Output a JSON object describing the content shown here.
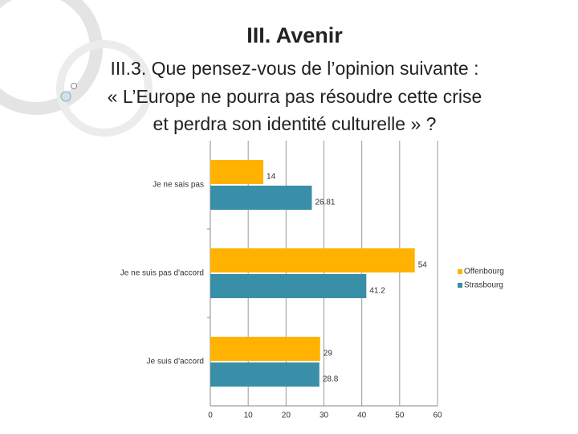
{
  "chart_data": {
    "type": "bar",
    "orientation": "horizontal",
    "title": "III. Avenir",
    "subtitle": [
      "III.3.  Que pensez-vous de l’opinion suivante :",
      "« L’Europe ne pourra pas résoudre cette crise",
      "et perdra son identité culturelle » ?"
    ],
    "categories": [
      "Je ne sais pas",
      "Je ne suis pas d'accord",
      "Je suis d'accord"
    ],
    "series": [
      {
        "name": "Offenbourg",
        "color": "#ffb300",
        "values": [
          14,
          54,
          29
        ]
      },
      {
        "name": "Strasbourg",
        "color": "#3a8fa8",
        "values": [
          26.81,
          41.2,
          28.8
        ]
      }
    ],
    "xlim": [
      0,
      60
    ],
    "xticks": [
      0,
      10,
      20,
      30,
      40,
      50,
      60
    ],
    "grid": true,
    "legend": "right"
  }
}
